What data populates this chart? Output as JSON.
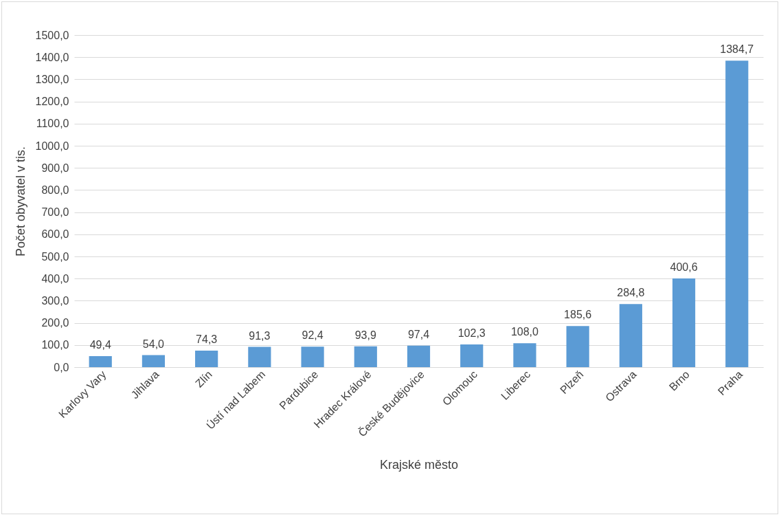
{
  "chart_data": {
    "type": "bar",
    "xlabel": "Krajské město",
    "ylabel": "Počet obyvatel v tis.",
    "categories": [
      "Karlovy Vary",
      "Jihlava",
      "Zlín",
      "Ústí nad Labem",
      "Pardubice",
      "Hradec Králové",
      "České Budějovice",
      "Olomouc",
      "Liberec",
      "Plzeň",
      "Ostrava",
      "Brno",
      "Praha"
    ],
    "values": [
      49.4,
      54.0,
      74.3,
      91.3,
      92.4,
      93.9,
      97.4,
      102.3,
      108.0,
      185.6,
      284.8,
      400.6,
      1384.7
    ],
    "value_labels": [
      "49,4",
      "54,0",
      "74,3",
      "91,3",
      "92,4",
      "93,9",
      "97,4",
      "102,3",
      "108,0",
      "185,6",
      "284,8",
      "400,6",
      "1384,7"
    ],
    "color": "#5b9bd5",
    "ylim": [
      0,
      1500
    ],
    "yticks": [
      {
        "value": 0,
        "label": "0,0"
      },
      {
        "value": 100,
        "label": "100,0"
      },
      {
        "value": 200,
        "label": "200,0"
      },
      {
        "value": 300,
        "label": "300,0"
      },
      {
        "value": 400,
        "label": "400,0"
      },
      {
        "value": 500,
        "label": "500,0"
      },
      {
        "value": 600,
        "label": "600,0"
      },
      {
        "value": 700,
        "label": "700,0"
      },
      {
        "value": 800,
        "label": "800,0"
      },
      {
        "value": 900,
        "label": "900,0"
      },
      {
        "value": 1000,
        "label": "1000,0"
      },
      {
        "value": 1100,
        "label": "1100,0"
      },
      {
        "value": 1200,
        "label": "1200,0"
      },
      {
        "value": 1300,
        "label": "1300,0"
      },
      {
        "value": 1400,
        "label": "1400,0"
      },
      {
        "value": 1500,
        "label": "1500,0"
      }
    ],
    "grid": "y"
  }
}
